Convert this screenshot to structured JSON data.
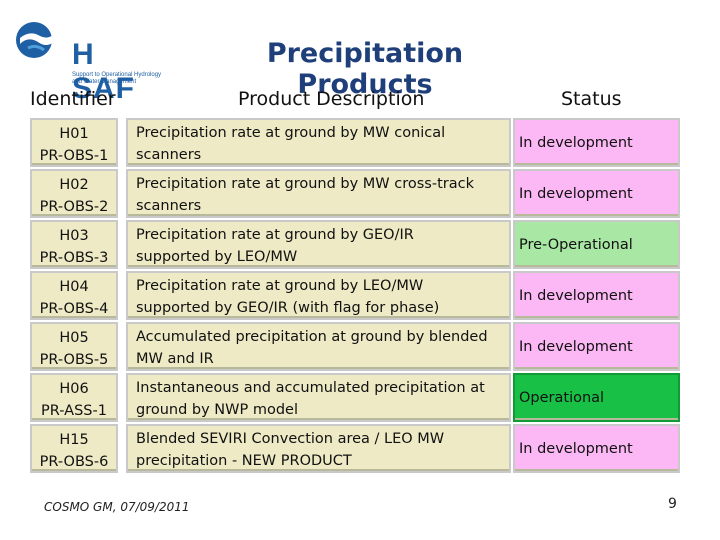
{
  "logo": {
    "name": "H SAF",
    "subtitle": "Support to Operational Hydrology and Water Management"
  },
  "title": "Precipitation Products",
  "headers": {
    "identifier": "Identifier",
    "description": "Product Description",
    "status": "Status"
  },
  "rows": [
    {
      "id1": "H01",
      "id2": "PR-OBS-1",
      "desc1": "Precipitation rate at ground by MW conical",
      "desc2": "scanners",
      "status": "In development"
    },
    {
      "id1": "H02",
      "id2": "PR-OBS-2",
      "desc1": "Precipitation rate at ground by MW cross-track",
      "desc2": "scanners",
      "status": "In development"
    },
    {
      "id1": "H03",
      "id2": "PR-OBS-3",
      "desc1": "Precipitation rate at ground by GEO/IR",
      "desc2": "supported by LEO/MW",
      "status": "Pre-Operational"
    },
    {
      "id1": "H04",
      "id2": "PR-OBS-4",
      "desc1": "Precipitation rate at ground by LEO/MW",
      "desc2": "supported by GEO/IR (with flag for phase)",
      "status": "In development"
    },
    {
      "id1": "H05",
      "id2": "PR-OBS-5",
      "desc1": "Accumulated precipitation at ground by blended",
      "desc2": "MW and IR",
      "status": "In development"
    },
    {
      "id1": "H06",
      "id2": "PR-ASS-1",
      "desc1": "Instantaneous and accumulated precipitation at",
      "desc2": "ground by  NWP model",
      "status": "Operational"
    },
    {
      "id1": "H15",
      "id2": "PR-OBS-6",
      "desc1": "Blended SEVIRI Convection area / LEO MW",
      "desc2": "precipitation - NEW PRODUCT",
      "status": "In development"
    }
  ],
  "status_colors": {
    "In development": "#fbb8f5",
    "Pre-Operational": "#a9e8a4",
    "Operational": "#18c046"
  },
  "footer": "COSMO GM, 07/09/2011",
  "page_number": "9"
}
